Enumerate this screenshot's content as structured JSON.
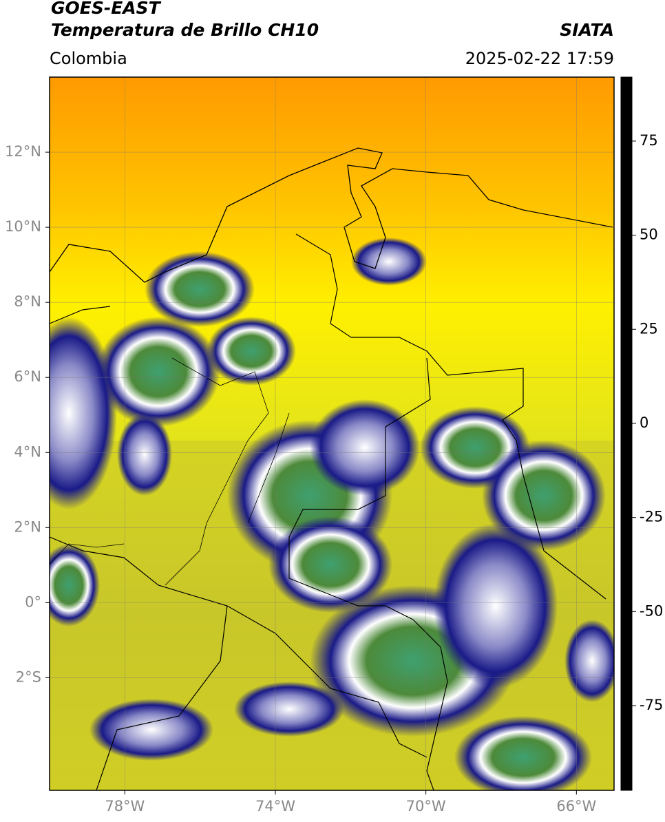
{
  "header": {
    "title": "GOES-EAST",
    "subtitle": "Temperatura de Brillo CH10",
    "source": "SIATA",
    "region": "Colombia",
    "datetime": "2025-02-22 17:59"
  },
  "map": {
    "xlim": [
      -80,
      -65
    ],
    "ylim": [
      -5,
      14
    ],
    "xticks": [
      {
        "value": -78,
        "label": "78°W"
      },
      {
        "value": -74,
        "label": "74°W"
      },
      {
        "value": -70,
        "label": "70°W"
      },
      {
        "value": -66,
        "label": "66°W"
      }
    ],
    "yticks": [
      {
        "value": 12,
        "label": "12°N"
      },
      {
        "value": 10,
        "label": "10°N"
      },
      {
        "value": 8,
        "label": "8°N"
      },
      {
        "value": 6,
        "label": "6°N"
      },
      {
        "value": 4,
        "label": "4°N"
      },
      {
        "value": 2,
        "label": "2°N"
      },
      {
        "value": 0,
        "label": "0°"
      },
      {
        "value": -2,
        "label": "2°S"
      }
    ],
    "grid": true
  },
  "colorbar": {
    "lim": [
      -97.5,
      92
    ],
    "ticks": [
      75,
      50,
      25,
      0,
      -25,
      -50,
      -75
    ],
    "colormap": [
      {
        "value": 92,
        "color": "#000000"
      },
      {
        "value": 8,
        "color": "#000000"
      },
      {
        "value": 7.9,
        "color": "#ff1a00"
      },
      {
        "value": -3,
        "color": "#ff8c00"
      },
      {
        "value": -12,
        "color": "#ffff00"
      },
      {
        "value": -19,
        "color": "#b4b428"
      },
      {
        "value": -24.9,
        "color": "#3a3a3a"
      },
      {
        "value": -25,
        "color": "#0c0c78"
      },
      {
        "value": -38,
        "color": "#7a7ac0"
      },
      {
        "value": -50,
        "color": "#ffffff"
      },
      {
        "value": -56,
        "color": "#4a8a30"
      },
      {
        "value": -75,
        "color": "#20a888"
      },
      {
        "value": -90,
        "color": "#00e8e8"
      },
      {
        "value": -90.1,
        "color": "#ffffff"
      },
      {
        "value": -97.5,
        "color": "#ffffff"
      }
    ]
  }
}
